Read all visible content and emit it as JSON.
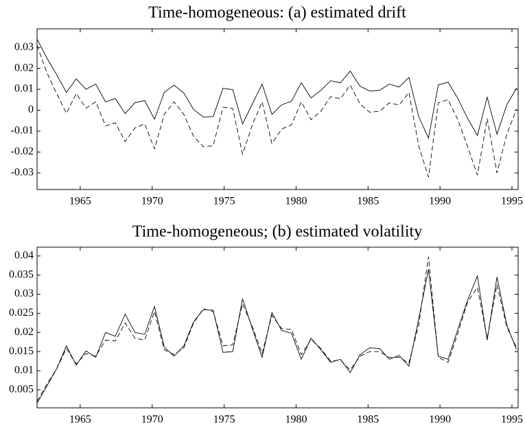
{
  "chart_data": [
    {
      "type": "line",
      "title": "Time-homogeneous: (a) estimated drift",
      "x": [
        1962.0,
        1962.68,
        1963.36,
        1964.04,
        1964.72,
        1965.4,
        1966.08,
        1966.76,
        1967.44,
        1968.12,
        1968.8,
        1969.48,
        1970.16,
        1970.84,
        1971.52,
        1972.2,
        1972.88,
        1973.56,
        1974.24,
        1974.92,
        1975.6,
        1976.28,
        1976.96,
        1977.64,
        1978.32,
        1979.0,
        1979.68,
        1980.36,
        1981.04,
        1981.72,
        1982.4,
        1983.08,
        1983.76,
        1984.44,
        1985.12,
        1985.8,
        1986.48,
        1987.16,
        1987.84,
        1988.52,
        1989.2,
        1989.88,
        1990.56,
        1991.24,
        1991.92,
        1992.6,
        1993.28,
        1993.96,
        1994.64,
        1995.32
      ],
      "series": [
        {
          "color": "#000000",
          "linestyle": "solid",
          "values": [
            0.034,
            0.025,
            0.017,
            0.0085,
            0.015,
            0.01,
            0.0125,
            0.004,
            0.0056,
            -0.0016,
            0.0036,
            0.0046,
            -0.0043,
            0.0085,
            0.012,
            0.0082,
            0.0003,
            -0.0033,
            -0.003,
            0.0105,
            0.0098,
            -0.0066,
            0.003,
            0.0125,
            -0.002,
            0.0026,
            0.0043,
            0.0131,
            0.0059,
            0.0095,
            0.0141,
            0.0131,
            0.0187,
            0.0115,
            0.0092,
            0.0095,
            0.0125,
            0.0111,
            0.0157,
            -0.003,
            -0.0134,
            0.0121,
            0.0134,
            0.0056,
            -0.0039,
            -0.0121,
            0.0062,
            -0.0115,
            0.0026,
            0.0105
          ]
        },
        {
          "color": "#000000",
          "linestyle": "dashed",
          "values": [
            0.031,
            0.018,
            0.008,
            -0.0015,
            0.008,
            0.001,
            0.004,
            -0.0075,
            -0.006,
            -0.015,
            -0.0085,
            -0.0065,
            -0.0185,
            -0.002,
            0.004,
            -0.002,
            -0.0125,
            -0.0175,
            -0.017,
            0.0015,
            0.0008,
            -0.021,
            -0.007,
            0.004,
            -0.016,
            -0.009,
            -0.007,
            0.004,
            -0.0045,
            -0.0005,
            0.0065,
            0.0055,
            0.012,
            0.003,
            -0.001,
            -0.0005,
            0.0035,
            0.0025,
            0.0085,
            -0.017,
            -0.032,
            0.0035,
            0.005,
            -0.0045,
            -0.0175,
            -0.031,
            -0.004,
            -0.03,
            -0.0115,
            0.0005
          ]
        }
      ],
      "xlim": [
        1962,
        1995.43
      ],
      "xticks": [
        1965,
        1970,
        1975,
        1980,
        1985,
        1990,
        1995
      ],
      "ylim": [
        -0.0379,
        0.0389
      ],
      "yticks": [
        -0.03,
        -0.02,
        -0.01,
        0,
        0.01,
        0.02,
        0.03
      ],
      "grid": false
    },
    {
      "type": "line",
      "title": "Time-homogeneous; (b) estimated volatility",
      "x": [
        1962.0,
        1962.68,
        1963.36,
        1964.04,
        1964.72,
        1965.4,
        1966.08,
        1966.76,
        1967.44,
        1968.12,
        1968.8,
        1969.48,
        1970.16,
        1970.84,
        1971.52,
        1972.2,
        1972.88,
        1973.56,
        1974.24,
        1974.92,
        1975.6,
        1976.28,
        1976.96,
        1977.64,
        1978.32,
        1979.0,
        1979.68,
        1980.36,
        1981.04,
        1981.72,
        1982.4,
        1983.08,
        1983.76,
        1984.44,
        1985.12,
        1985.8,
        1986.48,
        1987.16,
        1987.84,
        1988.52,
        1989.2,
        1989.88,
        1990.56,
        1991.24,
        1991.92,
        1992.6,
        1993.28,
        1993.96,
        1994.64,
        1995.32
      ],
      "series": [
        {
          "color": "#000000",
          "linestyle": "solid",
          "values": [
            0.0015,
            0.006,
            0.0105,
            0.0165,
            0.0115,
            0.0152,
            0.0135,
            0.02,
            0.019,
            0.0248,
            0.02,
            0.0195,
            0.0268,
            0.0162,
            0.0138,
            0.0165,
            0.0228,
            0.026,
            0.0258,
            0.0148,
            0.015,
            0.0288,
            0.021,
            0.0135,
            0.0252,
            0.0205,
            0.0198,
            0.013,
            0.0185,
            0.0155,
            0.0122,
            0.013,
            0.0095,
            0.0142,
            0.016,
            0.0158,
            0.013,
            0.014,
            0.0112,
            0.0235,
            0.0365,
            0.0138,
            0.013,
            0.0208,
            0.0285,
            0.0348,
            0.018,
            0.0345,
            0.022,
            0.0155
          ]
        },
        {
          "color": "#000000",
          "linestyle": "dashed",
          "values": [
            0.002,
            0.0065,
            0.0105,
            0.0158,
            0.0118,
            0.0145,
            0.0138,
            0.018,
            0.0178,
            0.0225,
            0.0185,
            0.018,
            0.0255,
            0.0155,
            0.0142,
            0.016,
            0.0225,
            0.0262,
            0.0255,
            0.0165,
            0.0168,
            0.0275,
            0.0215,
            0.0145,
            0.0245,
            0.021,
            0.0208,
            0.0142,
            0.0182,
            0.0158,
            0.0125,
            0.0128,
            0.0102,
            0.0138,
            0.015,
            0.015,
            0.0135,
            0.0135,
            0.012,
            0.022,
            0.0398,
            0.0135,
            0.0122,
            0.0198,
            0.028,
            0.0318,
            0.0185,
            0.0325,
            0.0215,
            0.016
          ]
        }
      ],
      "xlim": [
        1962,
        1995.43
      ],
      "xticks": [
        1965,
        1970,
        1975,
        1980,
        1985,
        1990,
        1995
      ],
      "ylim": [
        0.0003,
        0.0423
      ],
      "yticks": [
        0.005,
        0.01,
        0.015,
        0.02,
        0.025,
        0.03,
        0.035,
        0.04
      ],
      "grid": false
    }
  ]
}
